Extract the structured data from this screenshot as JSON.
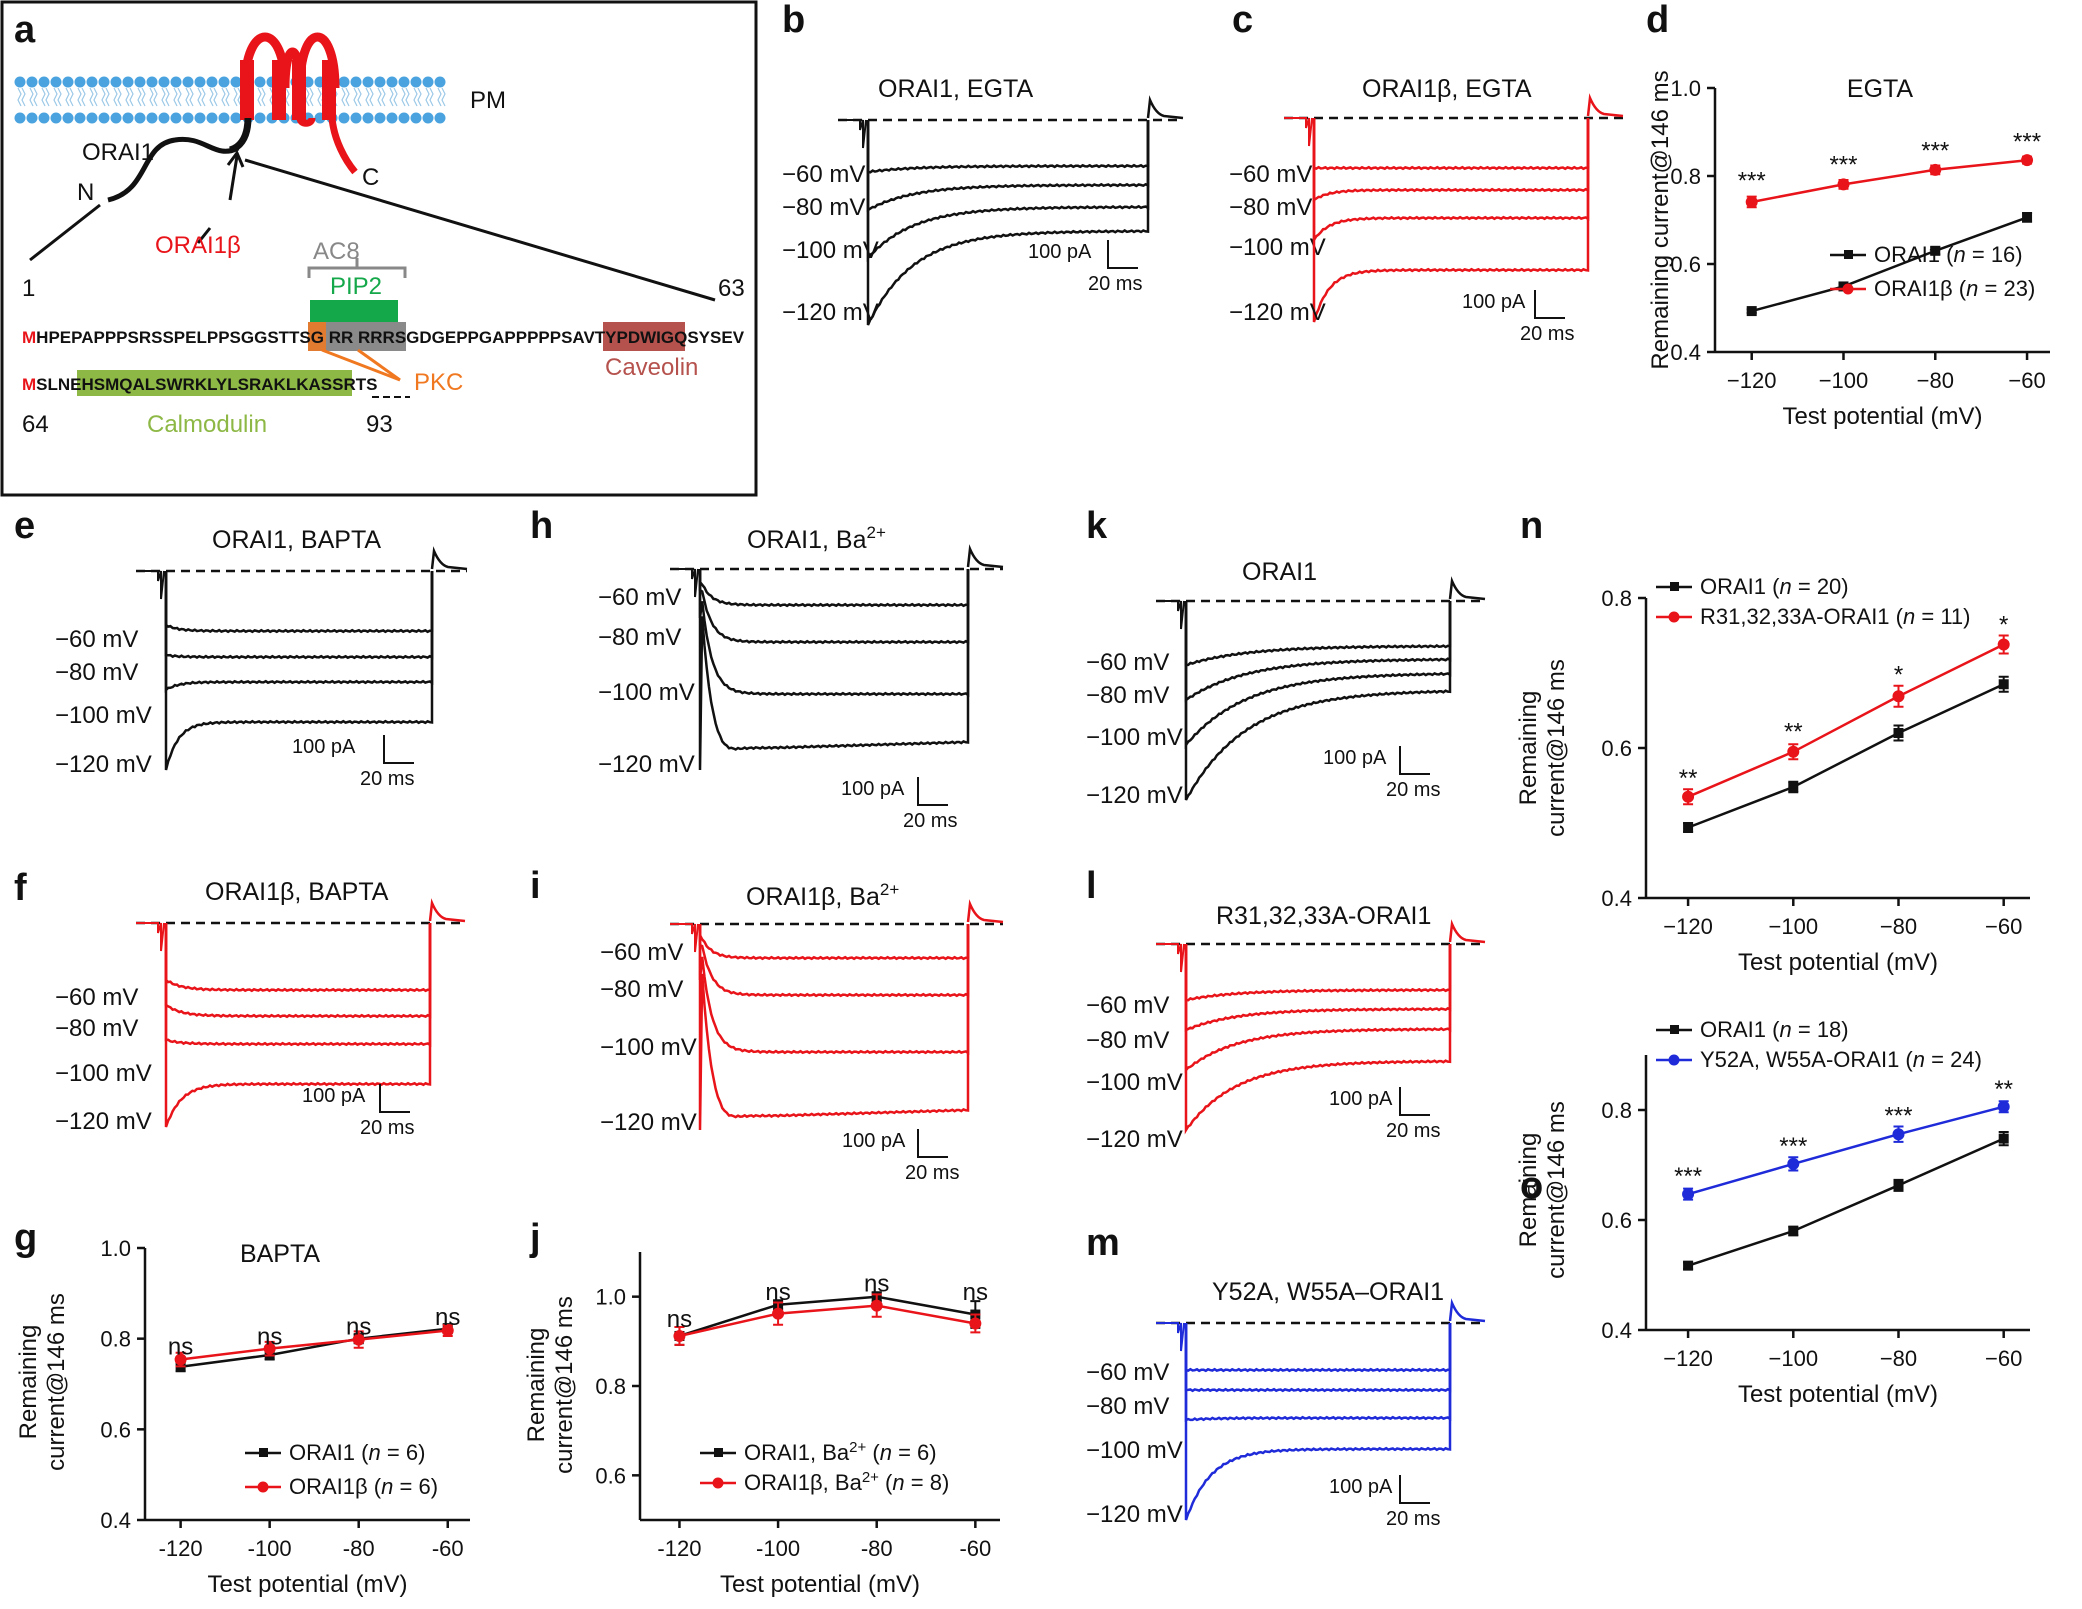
{
  "colors": {
    "orai1": "#111111",
    "beta": "#e8141a",
    "blue": "#1f2bd9",
    "pip2": "#15a84a",
    "ac8": "#888888",
    "pkc": "#f07820",
    "caveolin": "#b5524d",
    "calmodulin": "#8db845",
    "membrane": "#4aa3df"
  },
  "panels": {
    "a": {
      "label": "a",
      "pm": "PM",
      "orai1": "ORAI1",
      "n": "N",
      "c": "C",
      "orai1b": "ORAI1β",
      "ac8": "AC8",
      "pip2": "PIP2",
      "pkc": "PKC",
      "caveolin": "Caveolin",
      "calmodulin": "Calmodulin",
      "n1": "1",
      "n63": "63",
      "n64": "64",
      "n93": "93",
      "seq1_pre": "M",
      "seq1": "HPEPAPPPSRSSPELPPSGGSTTSG RR RRRSGDGEPPGAPPPPPSAVTYPDWIGQSYSEV",
      "seq2_pre": "M",
      "seq2": "SLNEHSMQALSWRKLYLSRAKLKASSRTS"
    },
    "b": {
      "label": "b",
      "title": "ORAI1, EGTA",
      "voltages": [
        "−60 mV",
        "−80 mV",
        "−100 mV",
        "−120 mV"
      ],
      "scale_pa": "100 pA",
      "scale_ms": "20 ms"
    },
    "c": {
      "label": "c",
      "title": "ORAI1β, EGTA",
      "voltages": [
        "−60 mV",
        "−80 mV",
        "−100 mV",
        "−120 mV"
      ],
      "scale_pa": "100 pA",
      "scale_ms": "20 ms"
    },
    "e": {
      "label": "e",
      "title": "ORAI1, BAPTA",
      "voltages": [
        "−60 mV",
        "−80 mV",
        "−100 mV",
        "−120 mV"
      ],
      "scale_pa": "100 pA",
      "scale_ms": "20 ms"
    },
    "f": {
      "label": "f",
      "title": "ORAI1β, BAPTA",
      "voltages": [
        "−60 mV",
        "−80 mV",
        "−100 mV",
        "−120 mV"
      ],
      "scale_pa": "100 pA",
      "scale_ms": "20 ms"
    },
    "h": {
      "label": "h",
      "title": "ORAI1, Ba",
      "sup": "2+",
      "voltages": [
        "−60 mV",
        "−80 mV",
        "−100 mV",
        "−120 mV"
      ],
      "scale_pa": "100 pA",
      "scale_ms": "20 ms"
    },
    "i": {
      "label": "i",
      "title": "ORAI1β, Ba",
      "sup": "2+",
      "voltages": [
        "−60 mV",
        "−80 mV",
        "−100 mV",
        "−120 mV"
      ],
      "scale_pa": "100 pA",
      "scale_ms": "20 ms"
    },
    "k": {
      "label": "k",
      "title": "ORAI1",
      "voltages": [
        "−60 mV",
        "−80 mV",
        "−100 mV",
        "−120 mV"
      ],
      "scale_pa": "100 pA",
      "scale_ms": "20 ms"
    },
    "l": {
      "label": "l",
      "title": "R31,32,33A-ORAI1",
      "voltages": [
        "−60 mV",
        "−80 mV",
        "−100 mV",
        "−120 mV"
      ],
      "scale_pa": "100 pA",
      "scale_ms": "20 ms"
    },
    "m": {
      "label": "m",
      "title": "Y52A, W55A–ORAI1",
      "voltages": [
        "−60 mV",
        "−80 mV",
        "−100 mV",
        "−120 mV"
      ],
      "scale_pa": "100 pA",
      "scale_ms": "20 ms"
    },
    "d": {
      "label": "d"
    },
    "g": {
      "label": "g"
    },
    "j": {
      "label": "j"
    },
    "n": {
      "label": "n"
    },
    "o": {
      "label": "o"
    }
  },
  "chart_data": [
    {
      "panel": "d",
      "type": "line",
      "title": "EGTA",
      "xlabel": "Test potential (mV)",
      "ylabel": "Remaining current@146 ms",
      "x": [
        -120,
        -100,
        -80,
        -60
      ],
      "xlim": [
        -128,
        -55
      ],
      "ylim": [
        0.4,
        1.0
      ],
      "yticks": [
        "0.4",
        "0.6",
        "0.8",
        "1.0"
      ],
      "xticks": [
        "−120",
        "−100",
        "−80",
        "−60"
      ],
      "series": [
        {
          "name": "ORAI1",
          "n": "16",
          "values": [
            0.493,
            0.549,
            0.63,
            0.706
          ],
          "err": [
            0.004,
            0.006,
            0.008,
            0.01
          ]
        },
        {
          "name": "ORAI1β",
          "n": "23",
          "values": [
            0.741,
            0.781,
            0.814,
            0.836
          ],
          "err": [
            0.012,
            0.01,
            0.01,
            0.008
          ]
        }
      ],
      "significance": [
        "***",
        "***",
        "***",
        "***"
      ],
      "sig_values": [
        0.79,
        0.826,
        0.858,
        0.878
      ]
    },
    {
      "panel": "g",
      "type": "line",
      "title": "BAPTA",
      "xlabel": "Test potential (mV)",
      "ylabel": "Remaining\ncurrent@146 ms",
      "x": [
        -120,
        -100,
        -80,
        -60
      ],
      "xlim": [
        -128,
        -55
      ],
      "ylim": [
        0.4,
        1.0
      ],
      "yticks": [
        "0.4",
        "0.6",
        "0.8",
        "1.0"
      ],
      "xticks": [
        "-120",
        "-100",
        "-80",
        "-60"
      ],
      "series": [
        {
          "name": "ORAI1",
          "n": "6",
          "values": [
            0.738,
            0.764,
            0.8,
            0.822
          ],
          "err": [
            0.01,
            0.01,
            0.01,
            0.01
          ]
        },
        {
          "name": "ORAI1β",
          "n": "6",
          "values": [
            0.754,
            0.778,
            0.798,
            0.818
          ],
          "err": [
            0.015,
            0.015,
            0.018,
            0.012
          ]
        }
      ],
      "significance": [
        "ns",
        "ns",
        "ns",
        "ns"
      ],
      "sig_values": [
        0.783,
        0.805,
        0.827,
        0.848
      ]
    },
    {
      "panel": "j",
      "type": "line",
      "title": "",
      "xlabel": "Test potential (mV)",
      "ylabel": "Remaining\ncurrent@146 ms",
      "x": [
        -120,
        -100,
        -80,
        -60
      ],
      "xlim": [
        -128,
        -55
      ],
      "ylim": [
        0.5,
        1.1
      ],
      "yticks": [
        "0.6",
        "0.8",
        "1.0"
      ],
      "ytick_values": [
        0.6,
        0.8,
        1.0
      ],
      "xticks": [
        "-120",
        "-100",
        "-80",
        "-60"
      ],
      "series": [
        {
          "name": "ORAI1, Ba",
          "sup": "2+",
          "n": "6",
          "values": [
            0.912,
            0.982,
            1.0,
            0.96
          ],
          "err": [
            0.02,
            0.01,
            0.01,
            0.03
          ]
        },
        {
          "name": "ORAI1β, Ba",
          "sup": "2+",
          "n": "8",
          "values": [
            0.912,
            0.962,
            0.98,
            0.94
          ],
          "err": [
            0.02,
            0.025,
            0.025,
            0.02
          ]
        }
      ],
      "significance": [
        "ns",
        "ns",
        "ns",
        "ns"
      ],
      "sig_values": [
        0.95,
        1.01,
        1.03,
        1.01
      ]
    },
    {
      "panel": "n",
      "type": "line",
      "title": "",
      "xlabel": "Test potential (mV)",
      "ylabel": "Remaining\ncurrent@146 ms",
      "x": [
        -120,
        -100,
        -80,
        -60
      ],
      "xlim": [
        -128,
        -55
      ],
      "ylim": [
        0.4,
        0.8
      ],
      "yticks": [
        "0.4",
        "0.6",
        "0.8"
      ],
      "xticks": [
        "−120",
        "−100",
        "−80",
        "−60"
      ],
      "series": [
        {
          "name": "ORAI1",
          "n": "20",
          "values": [
            0.494,
            0.548,
            0.62,
            0.685
          ],
          "err": [
            0.006,
            0.007,
            0.01,
            0.01
          ]
        },
        {
          "name": "R31,32,33A-ORAI1",
          "n": "11",
          "values": [
            0.535,
            0.595,
            0.669,
            0.738
          ],
          "err": [
            0.01,
            0.01,
            0.014,
            0.012
          ]
        }
      ],
      "significance": [
        "**",
        "**",
        "*",
        "*"
      ],
      "sig_values": [
        0.56,
        0.622,
        0.698,
        0.765
      ]
    },
    {
      "panel": "o",
      "type": "line",
      "title": "",
      "xlabel": "Test potential (mV)",
      "ylabel": "Remaining\ncurrent@146 ms",
      "x": [
        -120,
        -100,
        -80,
        -60
      ],
      "xlim": [
        -128,
        -55
      ],
      "ylim": [
        0.4,
        0.9
      ],
      "yticks": [
        "0.4",
        "0.6",
        "0.8"
      ],
      "ytick_values": [
        0.4,
        0.6,
        0.8
      ],
      "xticks": [
        "−120",
        "−100",
        "−80",
        "−60"
      ],
      "series": [
        {
          "name": "ORAI1",
          "n": "18",
          "values": [
            0.517,
            0.58,
            0.663,
            0.748
          ],
          "err": [
            0.006,
            0.008,
            0.01,
            0.012
          ]
        },
        {
          "name": "Y52A, W55A-ORAI1",
          "n": "24",
          "values": [
            0.647,
            0.702,
            0.756,
            0.806
          ],
          "err": [
            0.01,
            0.012,
            0.014,
            0.01
          ]
        }
      ],
      "significance": [
        "***",
        "***",
        "***",
        "**"
      ],
      "sig_values": [
        0.68,
        0.735,
        0.79,
        0.838
      ]
    }
  ]
}
